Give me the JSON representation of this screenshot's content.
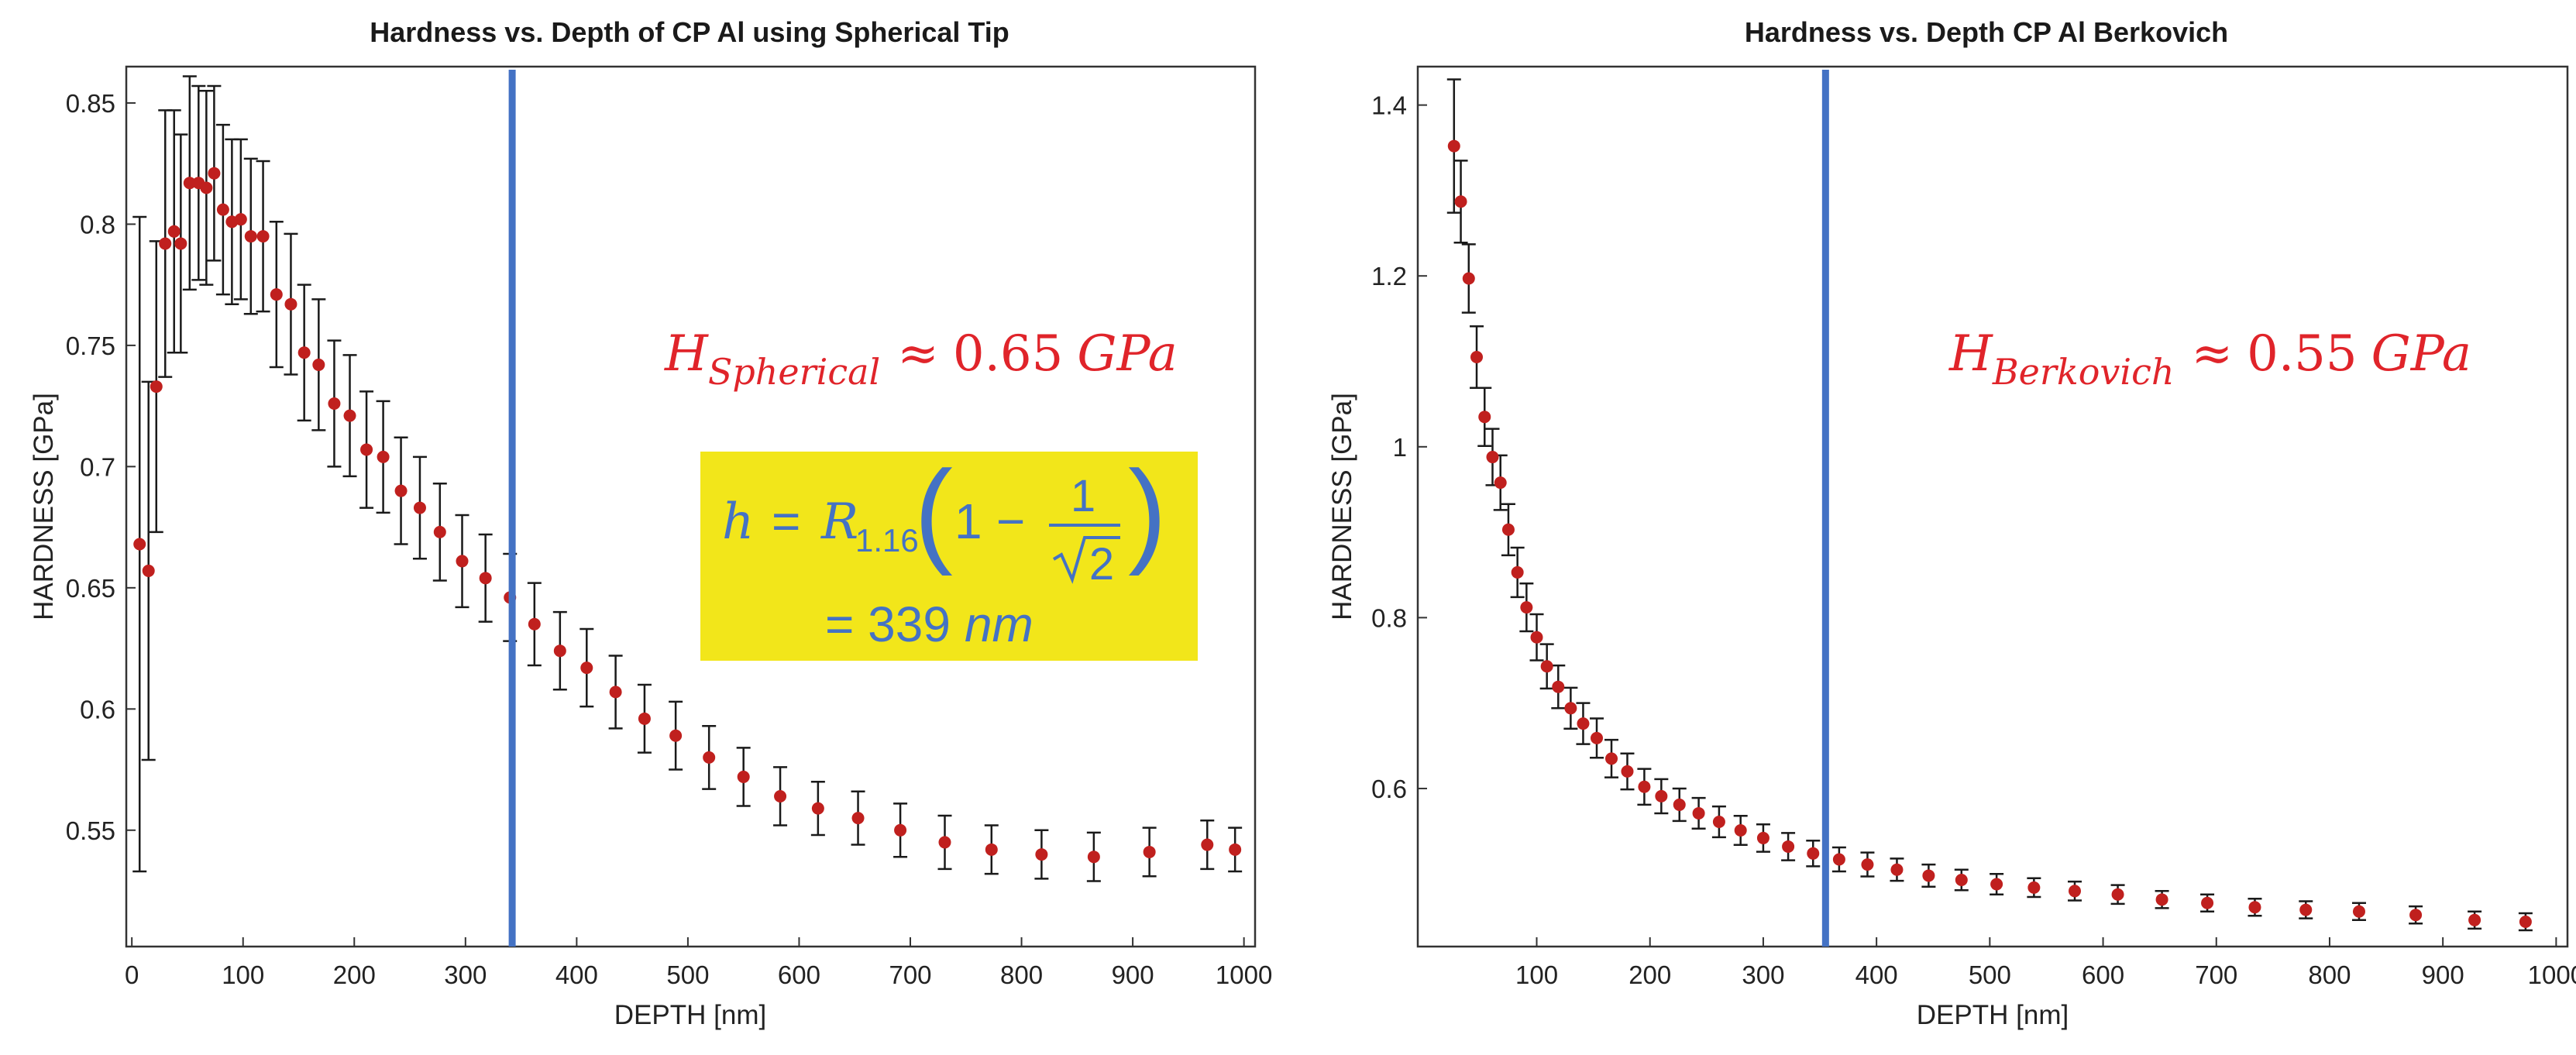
{
  "chart_data": [
    {
      "type": "scatter",
      "title": "Hardness vs. Depth of CP Al using Spherical Tip",
      "xlabel": "DEPTH [nm]",
      "ylabel": "HARDNESS [GPa]",
      "xlim": [
        -5,
        1010
      ],
      "ylim": [
        0.502,
        0.865
      ],
      "x_ticks": [
        0,
        100,
        200,
        300,
        400,
        500,
        600,
        700,
        800,
        900,
        1000
      ],
      "x_tick_labels": [
        "0",
        "100",
        "200",
        "300",
        "400",
        "500",
        "600",
        "700",
        "800",
        "900",
        "1000"
      ],
      "y_ticks": [
        0.55,
        0.6,
        0.65,
        0.7,
        0.75,
        0.8,
        0.85
      ],
      "y_tick_labels": [
        "0.55",
        "0.6",
        "0.65",
        "0.7",
        "0.75",
        "0.8",
        "0.85"
      ],
      "grid": false,
      "marker_color": "#c0201e",
      "errorbar_color": "#1a1a1a",
      "vline": {
        "x": 342,
        "color": "#4472c4"
      },
      "annotation": {
        "symbol": "H",
        "subscript": "Spherical",
        "relation": "≈",
        "value": "0.65",
        "unit": "GPa",
        "color": "#e0242a"
      },
      "formula_box": {
        "background": "#f2e61a",
        "text_color": "#4472c4",
        "lhs": "h",
        "equals": "=",
        "R": "R",
        "R_sub": "1.16",
        "one": "1",
        "minus": "−",
        "numerator": "1",
        "sqrt_arg": "2",
        "result": "= 339",
        "result_unit": "nm"
      },
      "series": [
        {
          "x": [
            7,
            15,
            22,
            30,
            38,
            44,
            52,
            60,
            67,
            74,
            82,
            90,
            98,
            107,
            118,
            130,
            143,
            155,
            168,
            182,
            196,
            211,
            226,
            242,
            259,
            277,
            297,
            318,
            340,
            362,
            385,
            409,
            435,
            461,
            489,
            519,
            550,
            583,
            617,
            653,
            691,
            731,
            773,
            818,
            865,
            915,
            967,
            992
          ],
          "y": [
            0.668,
            0.657,
            0.733,
            0.792,
            0.797,
            0.792,
            0.817,
            0.817,
            0.815,
            0.821,
            0.806,
            0.801,
            0.802,
            0.795,
            0.795,
            0.771,
            0.767,
            0.747,
            0.742,
            0.726,
            0.721,
            0.707,
            0.704,
            0.69,
            0.683,
            0.673,
            0.661,
            0.654,
            0.646,
            0.635,
            0.624,
            0.617,
            0.607,
            0.596,
            0.589,
            0.58,
            0.572,
            0.564,
            0.559,
            0.555,
            0.55,
            0.545,
            0.542,
            0.54,
            0.539,
            0.541,
            0.544,
            0.542
          ],
          "err": [
            0.135,
            0.078,
            0.06,
            0.055,
            0.05,
            0.045,
            0.044,
            0.04,
            0.04,
            0.036,
            0.035,
            0.034,
            0.033,
            0.032,
            0.031,
            0.03,
            0.029,
            0.028,
            0.027,
            0.026,
            0.025,
            0.024,
            0.023,
            0.022,
            0.021,
            0.02,
            0.019,
            0.018,
            0.018,
            0.017,
            0.016,
            0.016,
            0.015,
            0.014,
            0.014,
            0.013,
            0.012,
            0.012,
            0.011,
            0.011,
            0.011,
            0.011,
            0.01,
            0.01,
            0.01,
            0.01,
            0.01,
            0.009
          ]
        }
      ]
    },
    {
      "type": "scatter",
      "title": "Hardness vs. Depth CP Al Berkovich",
      "xlabel": "DEPTH [nm]",
      "ylabel": "HARDNESS [GPa]",
      "xlim": [
        -5,
        1010
      ],
      "ylim": [
        0.415,
        1.445
      ],
      "x_ticks": [
        100,
        200,
        300,
        400,
        500,
        600,
        700,
        800,
        900,
        1000
      ],
      "x_tick_labels": [
        "100",
        "200",
        "300",
        "400",
        "500",
        "600",
        "700",
        "800",
        "900",
        "1000"
      ],
      "y_ticks": [
        0.6,
        0.8,
        1.0,
        1.2,
        1.4
      ],
      "y_tick_labels": [
        "0.6",
        "0.8",
        "1",
        "1.2",
        "1.4"
      ],
      "grid": false,
      "marker_color": "#c0201e",
      "errorbar_color": "#1a1a1a",
      "vline": {
        "x": 355,
        "color": "#4472c4"
      },
      "annotation": {
        "symbol": "H",
        "subscript": "Berkovich",
        "relation": "≈",
        "value": "0.55",
        "unit": "GPa",
        "color": "#e0242a"
      },
      "series": [
        {
          "x": [
            27,
            33,
            40,
            47,
            54,
            61,
            68,
            75,
            83,
            91,
            100,
            109,
            119,
            130,
            141,
            153,
            166,
            180,
            195,
            210,
            226,
            243,
            261,
            280,
            300,
            322,
            344,
            367,
            392,
            418,
            446,
            475,
            506,
            539,
            575,
            613,
            652,
            692,
            734,
            779,
            826,
            876,
            928,
            973
          ],
          "y": [
            1.352,
            1.287,
            1.197,
            1.105,
            1.035,
            0.988,
            0.958,
            0.903,
            0.853,
            0.812,
            0.777,
            0.743,
            0.719,
            0.694,
            0.676,
            0.659,
            0.635,
            0.62,
            0.602,
            0.591,
            0.581,
            0.571,
            0.561,
            0.551,
            0.542,
            0.532,
            0.524,
            0.517,
            0.511,
            0.505,
            0.498,
            0.493,
            0.488,
            0.484,
            0.48,
            0.476,
            0.47,
            0.466,
            0.461,
            0.458,
            0.456,
            0.452,
            0.446,
            0.444
          ],
          "err": [
            0.078,
            0.048,
            0.04,
            0.036,
            0.034,
            0.033,
            0.032,
            0.03,
            0.029,
            0.028,
            0.027,
            0.026,
            0.025,
            0.024,
            0.024,
            0.023,
            0.022,
            0.021,
            0.021,
            0.02,
            0.019,
            0.018,
            0.018,
            0.017,
            0.016,
            0.016,
            0.015,
            0.014,
            0.014,
            0.013,
            0.013,
            0.012,
            0.012,
            0.011,
            0.011,
            0.011,
            0.01,
            0.01,
            0.01,
            0.01,
            0.01,
            0.01,
            0.01,
            0.01
          ]
        }
      ]
    }
  ]
}
